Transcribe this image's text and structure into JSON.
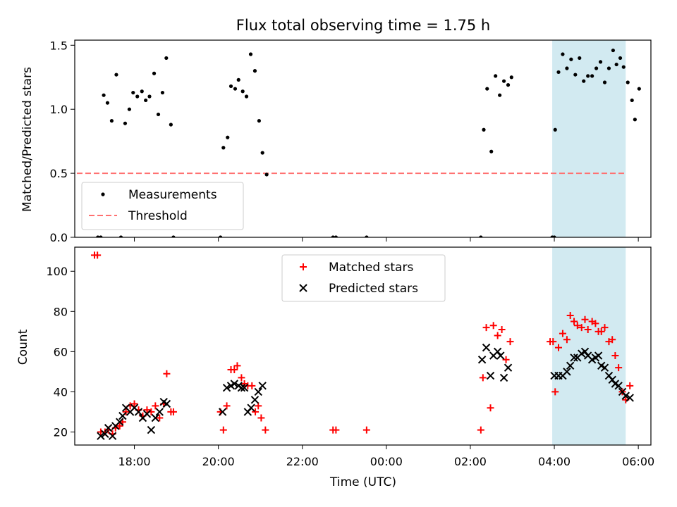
{
  "chart_data": {
    "type": "scatter",
    "title": "Flux total observing time = 1.75 h",
    "xlabel": "Time (UTC)",
    "x_units": "hours since 00:00 of the first day (values above 24 are the next day)",
    "xlim": [
      16.58,
      30.3
    ],
    "x_ticks": [
      {
        "value": 18,
        "label": "18:00"
      },
      {
        "value": 20,
        "label": "20:00"
      },
      {
        "value": 22,
        "label": "22:00"
      },
      {
        "value": 24,
        "label": "00:00"
      },
      {
        "value": 26,
        "label": "02:00"
      },
      {
        "value": 28,
        "label": "04:00"
      },
      {
        "value": 30,
        "label": "06:00"
      }
    ],
    "highlight_span": {
      "from": 27.95,
      "to": 29.7,
      "color": "#add8e6"
    },
    "panels": [
      {
        "id": "ratio",
        "ylabel": "Matched/Predicted stars",
        "ylim": [
          0,
          1.54
        ],
        "y_ticks": [
          {
            "value": 0,
            "label": "0.0"
          },
          {
            "value": 0.5,
            "label": "0.5"
          },
          {
            "value": 1,
            "label": "1.0"
          },
          {
            "value": 1.5,
            "label": "1.5"
          }
        ],
        "threshold": {
          "value": 0.5,
          "from": 16.63,
          "to": 29.67,
          "color": "#ff7070"
        },
        "legend": {
          "location": "lower-left",
          "entries": [
            "Measurements",
            "Threshold"
          ]
        },
        "series": [
          {
            "name": "Measurements",
            "marker": "dot",
            "color": "#000000",
            "points": [
              [
                17.13,
                0
              ],
              [
                17.2,
                0
              ],
              [
                17.27,
                1.11
              ],
              [
                17.36,
                1.05
              ],
              [
                17.46,
                0.91
              ],
              [
                17.57,
                1.27
              ],
              [
                17.68,
                0
              ],
              [
                17.78,
                0.89
              ],
              [
                17.88,
                1.0
              ],
              [
                17.97,
                1.13
              ],
              [
                18.07,
                1.1
              ],
              [
                18.18,
                1.14
              ],
              [
                18.27,
                1.07
              ],
              [
                18.36,
                1.1
              ],
              [
                18.47,
                1.28
              ],
              [
                18.57,
                0.96
              ],
              [
                18.67,
                1.13
              ],
              [
                18.76,
                1.4
              ],
              [
                18.87,
                0.88
              ],
              [
                18.93,
                0
              ],
              [
                20.05,
                0
              ],
              [
                20.12,
                0.7
              ],
              [
                20.22,
                0.78
              ],
              [
                20.3,
                1.18
              ],
              [
                20.4,
                1.16
              ],
              [
                20.48,
                1.23
              ],
              [
                20.58,
                1.14
              ],
              [
                20.67,
                1.1
              ],
              [
                20.77,
                1.43
              ],
              [
                20.87,
                1.3
              ],
              [
                20.97,
                0.91
              ],
              [
                21.05,
                0.66
              ],
              [
                21.15,
                0.49
              ],
              [
                22.73,
                0
              ],
              [
                22.8,
                0
              ],
              [
                23.53,
                0
              ],
              [
                26.25,
                0
              ],
              [
                26.32,
                0.84
              ],
              [
                26.4,
                1.16
              ],
              [
                26.5,
                0.67
              ],
              [
                26.6,
                1.26
              ],
              [
                26.7,
                1.11
              ],
              [
                26.8,
                1.22
              ],
              [
                26.9,
                1.19
              ],
              [
                26.98,
                1.25
              ],
              [
                27.95,
                0
              ],
              [
                28.0,
                0
              ],
              [
                28.02,
                0.84
              ],
              [
                28.1,
                1.29
              ],
              [
                28.2,
                1.43
              ],
              [
                28.3,
                1.32
              ],
              [
                28.4,
                1.39
              ],
              [
                28.5,
                1.27
              ],
              [
                28.6,
                1.4
              ],
              [
                28.7,
                1.22
              ],
              [
                28.8,
                1.26
              ],
              [
                28.9,
                1.26
              ],
              [
                29.0,
                1.32
              ],
              [
                29.1,
                1.37
              ],
              [
                29.2,
                1.21
              ],
              [
                29.3,
                1.32
              ],
              [
                29.4,
                1.46
              ],
              [
                29.48,
                1.35
              ],
              [
                29.57,
                1.4
              ],
              [
                29.65,
                1.33
              ],
              [
                29.75,
                1.21
              ],
              [
                29.85,
                1.07
              ],
              [
                29.92,
                0.92
              ],
              [
                30.02,
                1.16
              ]
            ]
          }
        ]
      },
      {
        "id": "counts",
        "ylabel": "Count",
        "ylim": [
          13.5,
          112
        ],
        "y_ticks": [
          {
            "value": 20,
            "label": "20"
          },
          {
            "value": 40,
            "label": "40"
          },
          {
            "value": 60,
            "label": "60"
          },
          {
            "value": 80,
            "label": "80"
          },
          {
            "value": 100,
            "label": "100"
          }
        ],
        "legend": {
          "location": "upper-center",
          "entries": [
            "Matched stars",
            "Predicted stars"
          ]
        },
        "series": [
          {
            "name": "Matched stars",
            "marker": "plus",
            "color": "#ff0000",
            "points": [
              [
                17.05,
                108
              ],
              [
                17.12,
                108
              ],
              [
                17.2,
                20
              ],
              [
                17.3,
                20
              ],
              [
                17.38,
                21
              ],
              [
                17.48,
                19
              ],
              [
                17.55,
                22
              ],
              [
                17.65,
                23
              ],
              [
                17.72,
                25
              ],
              [
                17.8,
                30
              ],
              [
                17.9,
                33
              ],
              [
                18.0,
                34
              ],
              [
                18.1,
                31
              ],
              [
                18.2,
                28
              ],
              [
                18.3,
                31
              ],
              [
                18.4,
                30
              ],
              [
                18.5,
                33
              ],
              [
                18.6,
                27
              ],
              [
                18.7,
                34
              ],
              [
                18.77,
                49
              ],
              [
                18.87,
                30
              ],
              [
                18.93,
                30
              ],
              [
                20.05,
                30
              ],
              [
                20.12,
                21
              ],
              [
                20.2,
                33
              ],
              [
                20.3,
                51
              ],
              [
                20.38,
                51
              ],
              [
                20.45,
                53
              ],
              [
                20.55,
                47
              ],
              [
                20.62,
                44
              ],
              [
                20.7,
                43
              ],
              [
                20.8,
                43
              ],
              [
                20.88,
                30
              ],
              [
                20.95,
                33
              ],
              [
                21.02,
                27
              ],
              [
                21.12,
                21
              ],
              [
                22.73,
                21
              ],
              [
                22.8,
                21
              ],
              [
                23.53,
                21
              ],
              [
                26.25,
                21
              ],
              [
                26.3,
                47
              ],
              [
                26.38,
                72
              ],
              [
                26.48,
                32
              ],
              [
                26.55,
                73
              ],
              [
                26.65,
                68
              ],
              [
                26.75,
                71
              ],
              [
                26.85,
                56
              ],
              [
                26.95,
                65
              ],
              [
                27.9,
                65
              ],
              [
                27.97,
                65
              ],
              [
                28.02,
                40
              ],
              [
                28.1,
                62
              ],
              [
                28.2,
                69
              ],
              [
                28.3,
                66
              ],
              [
                28.38,
                78
              ],
              [
                28.47,
                75
              ],
              [
                28.55,
                73
              ],
              [
                28.65,
                72
              ],
              [
                28.73,
                76
              ],
              [
                28.8,
                71
              ],
              [
                28.9,
                75
              ],
              [
                28.98,
                74
              ],
              [
                29.05,
                70
              ],
              [
                29.12,
                70
              ],
              [
                29.2,
                72
              ],
              [
                29.3,
                65
              ],
              [
                29.38,
                66
              ],
              [
                29.45,
                58
              ],
              [
                29.53,
                52
              ],
              [
                29.62,
                40
              ],
              [
                29.7,
                36
              ],
              [
                29.8,
                43
              ]
            ]
          },
          {
            "name": "Predicted stars",
            "marker": "x",
            "color": "#000000",
            "points": [
              [
                17.2,
                18
              ],
              [
                17.3,
                19
              ],
              [
                17.38,
                22
              ],
              [
                17.48,
                18
              ],
              [
                17.55,
                23
              ],
              [
                17.65,
                25
              ],
              [
                17.72,
                28
              ],
              [
                17.8,
                32
              ],
              [
                17.9,
                30
              ],
              [
                18.0,
                32
              ],
              [
                18.1,
                30
              ],
              [
                18.2,
                27
              ],
              [
                18.3,
                29
              ],
              [
                18.4,
                21
              ],
              [
                18.5,
                27
              ],
              [
                18.6,
                30
              ],
              [
                18.7,
                35
              ],
              [
                18.77,
                34
              ],
              [
                20.1,
                30
              ],
              [
                20.2,
                42
              ],
              [
                20.3,
                43
              ],
              [
                20.38,
                44
              ],
              [
                20.48,
                43
              ],
              [
                20.55,
                42
              ],
              [
                20.62,
                42
              ],
              [
                20.7,
                30
              ],
              [
                20.78,
                32
              ],
              [
                20.87,
                36
              ],
              [
                20.95,
                40
              ],
              [
                21.05,
                43
              ],
              [
                26.28,
                56
              ],
              [
                26.38,
                62
              ],
              [
                26.48,
                48
              ],
              [
                26.55,
                58
              ],
              [
                26.65,
                60
              ],
              [
                26.72,
                58
              ],
              [
                26.8,
                47
              ],
              [
                26.9,
                52
              ],
              [
                28.0,
                48
              ],
              [
                28.1,
                48
              ],
              [
                28.2,
                48
              ],
              [
                28.3,
                50
              ],
              [
                28.38,
                53
              ],
              [
                28.47,
                57
              ],
              [
                28.55,
                57
              ],
              [
                28.65,
                59
              ],
              [
                28.73,
                60
              ],
              [
                28.8,
                58
              ],
              [
                28.9,
                56
              ],
              [
                28.98,
                57
              ],
              [
                29.05,
                58
              ],
              [
                29.12,
                53
              ],
              [
                29.2,
                52
              ],
              [
                29.3,
                48
              ],
              [
                29.38,
                46
              ],
              [
                29.45,
                44
              ],
              [
                29.53,
                43
              ],
              [
                29.62,
                40
              ],
              [
                29.7,
                38
              ],
              [
                29.8,
                37
              ]
            ]
          }
        ]
      }
    ]
  }
}
